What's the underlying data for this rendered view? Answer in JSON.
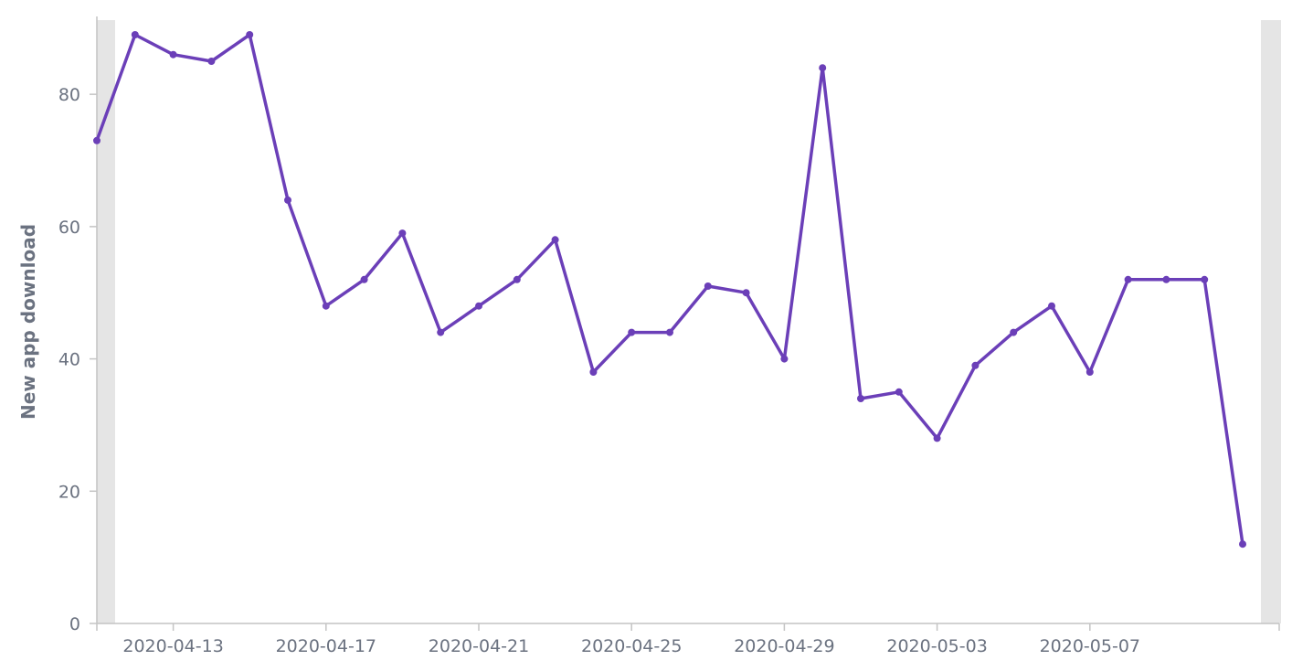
{
  "chart_data": {
    "type": "line",
    "ylabel": "New app download",
    "xlabel": "",
    "ylim": [
      0,
      90
    ],
    "yticks": [
      0,
      20,
      40,
      60,
      80
    ],
    "x_start": "2020-04-11",
    "x_ticks": [
      "2020-04-13",
      "2020-04-17",
      "2020-04-21",
      "2020-04-25",
      "2020-04-29",
      "2020-05-03",
      "2020-05-07"
    ],
    "grid": false,
    "line_color": "#6b3fb8",
    "series": [
      {
        "x": [
          "2020-04-11",
          "2020-04-12",
          "2020-04-13",
          "2020-04-14",
          "2020-04-15",
          "2020-04-16",
          "2020-04-17",
          "2020-04-18",
          "2020-04-19",
          "2020-04-20",
          "2020-04-21",
          "2020-04-22",
          "2020-04-23",
          "2020-04-24",
          "2020-04-25",
          "2020-04-26",
          "2020-04-27",
          "2020-04-28",
          "2020-04-29",
          "2020-04-30",
          "2020-05-01",
          "2020-05-02",
          "2020-05-03",
          "2020-05-04",
          "2020-05-05",
          "2020-05-06",
          "2020-05-07",
          "2020-05-08",
          "2020-05-09",
          "2020-05-10",
          "2020-05-11"
        ],
        "values": [
          73,
          89,
          86,
          85,
          89,
          64,
          48,
          52,
          59,
          44,
          48,
          52,
          58,
          38,
          44,
          44,
          51,
          50,
          40,
          84,
          34,
          35,
          28,
          39,
          44,
          48,
          38,
          52,
          52,
          52,
          12
        ]
      }
    ]
  }
}
